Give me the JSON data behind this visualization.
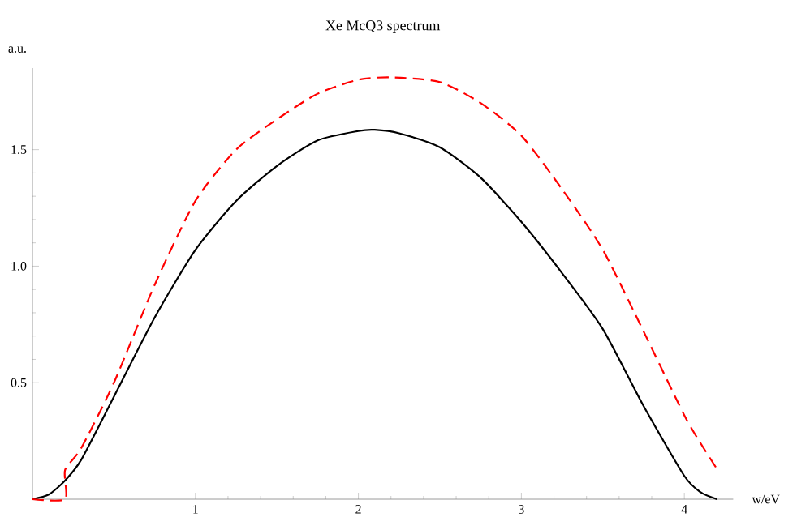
{
  "chart_data": {
    "type": "line",
    "title": "Xe McQ3 spectrum",
    "xlabel": "w/eV",
    "ylabel": "a.u.",
    "xlim": [
      0,
      4.3
    ],
    "ylim": [
      0,
      1.85
    ],
    "xticks": [
      1,
      2,
      3,
      4
    ],
    "yticks": [
      0.5,
      {
        "value": 1,
        "label": "1.0"
      },
      1.5
    ],
    "grid": false,
    "marker": "none",
    "series": [
      {
        "color": "#000000",
        "line_style": "solid",
        "x": [
          0,
          0.1,
          0.2,
          0.3,
          0.5,
          0.75,
          1,
          1.25,
          1.5,
          1.75,
          2,
          2.1,
          2.25,
          2.5,
          2.75,
          3,
          3.25,
          3.5,
          3.75,
          4,
          4.1,
          4.2
        ],
        "values": [
          0,
          0.02,
          0.08,
          0.17,
          0.44,
          0.78,
          1.07,
          1.28,
          1.43,
          1.54,
          1.58,
          1.585,
          1.57,
          1.51,
          1.38,
          1.19,
          0.97,
          0.73,
          0.4,
          0.1,
          0.03,
          0
        ]
      },
      {
        "color": "#ff0000",
        "line_style": "dashed",
        "x": [
          0,
          0.2,
          0.2,
          0.3,
          0.5,
          0.75,
          1,
          1.25,
          1.5,
          1.75,
          2,
          2.2,
          2.5,
          2.75,
          3,
          3.25,
          3.5,
          3.75,
          4,
          4.1,
          4.2
        ],
        "values": [
          0,
          0,
          0.125,
          0.22,
          0.5,
          0.92,
          1.28,
          1.5,
          1.63,
          1.74,
          1.8,
          1.81,
          1.79,
          1.7,
          1.56,
          1.33,
          1.07,
          0.72,
          0.36,
          0.24,
          0.13
        ]
      }
    ]
  }
}
